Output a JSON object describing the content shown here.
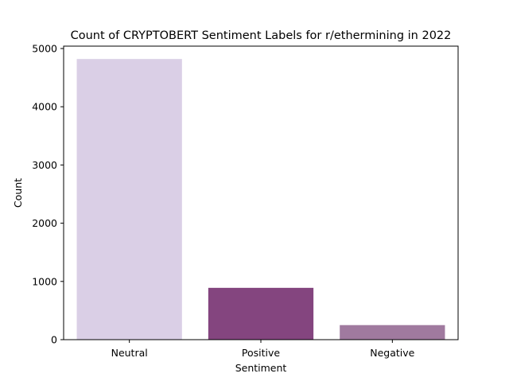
{
  "chart_data": {
    "type": "bar",
    "title": "Count of CRYPTOBERT Sentiment Labels for r/ethermining in 2022",
    "xlabel": "Sentiment",
    "ylabel": "Count",
    "categories": [
      "Neutral",
      "Positive",
      "Negative"
    ],
    "values": [
      4820,
      890,
      250
    ],
    "colors": [
      "#dacfe6",
      "#84457f",
      "#a07a9f"
    ],
    "ylim": [
      0,
      5000
    ],
    "yticks": [
      0,
      1000,
      2000,
      3000,
      4000,
      5000
    ],
    "grid": false,
    "legend": "none"
  }
}
